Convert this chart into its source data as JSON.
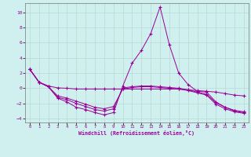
{
  "xlabel": "Windchill (Refroidissement éolien,°C)",
  "background_color": "#cff0ee",
  "grid_color": "#b8d8d4",
  "line_color": "#990099",
  "xlim": [
    -0.5,
    23.5
  ],
  "ylim": [
    -4.5,
    11.2
  ],
  "yticks": [
    -4,
    -2,
    0,
    2,
    4,
    6,
    8,
    10
  ],
  "xticks": [
    0,
    1,
    2,
    3,
    4,
    5,
    6,
    7,
    8,
    9,
    10,
    11,
    12,
    13,
    14,
    15,
    16,
    17,
    18,
    19,
    20,
    21,
    22,
    23
  ],
  "series": [
    {
      "x": [
        0,
        1,
        2,
        3,
        4,
        5,
        6,
        7,
        8,
        9,
        10,
        11,
        12,
        13,
        14,
        15,
        16,
        17,
        18,
        19,
        20,
        21,
        22,
        23
      ],
      "y": [
        2.5,
        0.8,
        0.3,
        0.05,
        0.0,
        -0.1,
        -0.1,
        -0.1,
        -0.1,
        -0.1,
        -0.1,
        -0.1,
        -0.1,
        -0.1,
        -0.1,
        -0.1,
        -0.1,
        -0.2,
        -0.3,
        -0.4,
        -0.5,
        -0.7,
        -0.9,
        -1.0
      ]
    },
    {
      "x": [
        0,
        1,
        2,
        3,
        4,
        5,
        6,
        7,
        8,
        9,
        10,
        11,
        12,
        13,
        14,
        15,
        16,
        17,
        18,
        19,
        20,
        21,
        22,
        23
      ],
      "y": [
        2.5,
        0.8,
        0.2,
        -1.3,
        -1.8,
        -2.5,
        -2.8,
        -3.2,
        -3.5,
        -3.2,
        0.3,
        3.3,
        5.0,
        7.2,
        10.7,
        5.7,
        2.0,
        0.5,
        -0.4,
        -0.5,
        -1.8,
        -2.5,
        -3.0,
        -3.2
      ]
    },
    {
      "x": [
        0,
        1,
        2,
        3,
        4,
        5,
        6,
        7,
        8,
        9,
        10,
        11,
        12,
        13,
        14,
        15,
        16,
        17,
        18,
        19,
        20,
        21,
        22,
        23
      ],
      "y": [
        2.5,
        0.8,
        0.2,
        -1.2,
        -1.5,
        -2.0,
        -2.4,
        -2.8,
        -3.0,
        -2.7,
        0.05,
        0.2,
        0.3,
        0.3,
        0.2,
        0.1,
        0.0,
        -0.2,
        -0.5,
        -0.8,
        -1.9,
        -2.5,
        -2.9,
        -3.1
      ]
    },
    {
      "x": [
        0,
        1,
        2,
        3,
        4,
        5,
        6,
        7,
        8,
        9,
        10,
        11,
        12,
        13,
        14,
        15,
        16,
        17,
        18,
        19,
        20,
        21,
        22,
        23
      ],
      "y": [
        2.5,
        0.8,
        0.2,
        -1.0,
        -1.3,
        -1.7,
        -2.1,
        -2.5,
        -2.7,
        -2.4,
        -0.1,
        0.1,
        0.2,
        0.2,
        0.1,
        0.0,
        -0.1,
        -0.3,
        -0.6,
        -0.9,
        -2.1,
        -2.7,
        -3.1,
        -3.3
      ]
    }
  ]
}
